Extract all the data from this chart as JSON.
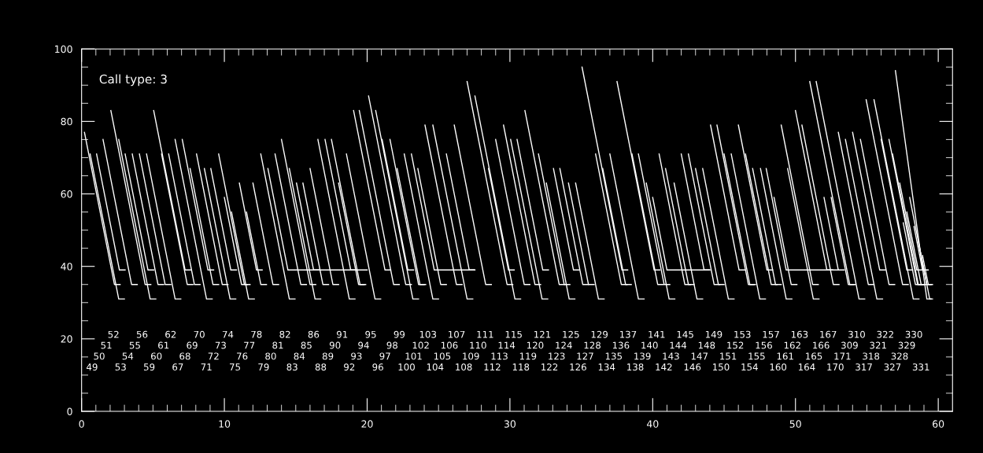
{
  "chart_data": {
    "type": "line",
    "xlim": [
      0,
      61
    ],
    "ylim": [
      0,
      100
    ],
    "xticks": [
      0,
      {
        "value": 1,
        "label": null
      },
      {
        "value": 2,
        "label": null
      },
      {
        "value": 3,
        "label": null
      },
      {
        "value": 4,
        "label": null
      },
      {
        "value": 5,
        "label": null
      },
      {
        "value": 6,
        "label": null
      },
      {
        "value": 7,
        "label": null
      },
      {
        "value": 8,
        "label": null
      },
      {
        "value": 9,
        "label": null
      },
      10,
      {
        "value": 11,
        "label": null
      },
      {
        "value": 12,
        "label": null
      },
      {
        "value": 13,
        "label": null
      },
      {
        "value": 14,
        "label": null
      },
      {
        "value": 15,
        "label": null
      },
      {
        "value": 16,
        "label": null
      },
      {
        "value": 17,
        "label": null
      },
      {
        "value": 18,
        "label": null
      },
      {
        "value": 19,
        "label": null
      },
      20,
      {
        "value": 21,
        "label": null
      },
      {
        "value": 22,
        "label": null
      },
      {
        "value": 23,
        "label": null
      },
      {
        "value": 24,
        "label": null
      },
      {
        "value": 25,
        "label": null
      },
      {
        "value": 26,
        "label": null
      },
      {
        "value": 27,
        "label": null
      },
      {
        "value": 28,
        "label": null
      },
      {
        "value": 29,
        "label": null
      },
      30,
      {
        "value": 31,
        "label": null
      },
      {
        "value": 32,
        "label": null
      },
      {
        "value": 33,
        "label": null
      },
      {
        "value": 34,
        "label": null
      },
      {
        "value": 35,
        "label": null
      },
      {
        "value": 36,
        "label": null
      },
      {
        "value": 37,
        "label": null
      },
      {
        "value": 38,
        "label": null
      },
      {
        "value": 39,
        "label": null
      },
      40,
      {
        "value": 41,
        "label": null
      },
      {
        "value": 42,
        "label": null
      },
      {
        "value": 43,
        "label": null
      },
      {
        "value": 44,
        "label": null
      },
      {
        "value": 45,
        "label": null
      },
      {
        "value": 46,
        "label": null
      },
      {
        "value": 47,
        "label": null
      },
      {
        "value": 48,
        "label": null
      },
      {
        "value": 49,
        "label": null
      },
      50,
      {
        "value": 51,
        "label": null
      },
      {
        "value": 52,
        "label": null
      },
      {
        "value": 53,
        "label": null
      },
      {
        "value": 54,
        "label": null
      },
      {
        "value": 55,
        "label": null
      },
      {
        "value": 56,
        "label": null
      },
      {
        "value": 57,
        "label": null
      },
      {
        "value": 58,
        "label": null
      },
      {
        "value": 59,
        "label": null
      },
      60
    ],
    "yticks": [
      0,
      {
        "value": 5,
        "label": null
      },
      {
        "value": 10,
        "label": null
      },
      {
        "value": 15,
        "label": null
      },
      20,
      {
        "value": 25,
        "label": null
      },
      {
        "value": 30,
        "label": null
      },
      {
        "value": 35,
        "label": null
      },
      40,
      {
        "value": 45,
        "label": null
      },
      {
        "value": 50,
        "label": null
      },
      {
        "value": 55,
        "label": null
      },
      60,
      {
        "value": 65,
        "label": null
      },
      {
        "value": 70,
        "label": null
      },
      {
        "value": 75,
        "label": null
      },
      80,
      {
        "value": 85,
        "label": null
      },
      {
        "value": 90,
        "label": null
      },
      {
        "value": 95,
        "label": null
      },
      100
    ],
    "annotations": [
      "Call type: 3",
      "49",
      "50",
      "51",
      "52",
      "53",
      "54",
      "55",
      "56",
      "59",
      "60",
      "61",
      "62",
      "67",
      "68",
      "69",
      "70",
      "71",
      "72",
      "73",
      "74",
      "75",
      "76",
      "77",
      "78",
      "79",
      "80",
      "81",
      "82",
      "83",
      "84",
      "85",
      "86",
      "88",
      "89",
      "90",
      "91",
      "92",
      "93",
      "94",
      "95",
      "96",
      "97",
      "98",
      "99",
      "100",
      "101",
      "102",
      "103",
      "104",
      "105",
      "106",
      "107",
      "108",
      "109",
      "110",
      "111",
      "112",
      "113",
      "114",
      "115",
      "118",
      "119",
      "120",
      "121",
      "122",
      "123",
      "124",
      "125",
      "126",
      "127",
      "128",
      "129",
      "134",
      "135",
      "136",
      "137",
      "138",
      "139",
      "140",
      "141",
      "142",
      "143",
      "144",
      "145",
      "146",
      "147",
      "148",
      "149",
      "150",
      "151",
      "152",
      "153",
      "154",
      "155",
      "156",
      "157",
      "160",
      "161",
      "162",
      "163",
      "164",
      "165",
      "166",
      "167",
      "170",
      "171",
      "309",
      "310",
      "317",
      "318",
      "321",
      "322",
      "327",
      "328",
      "329",
      "330",
      "331"
    ],
    "series": [
      {
        "color": "#ffffff",
        "x": [
          0.2,
          2.3,
          2.7
        ],
        "values": [
          77,
          35,
          35
        ]
      },
      {
        "color": "#ffffff",
        "x": [
          0.6,
          2.6,
          3.0
        ],
        "values": [
          71,
          31,
          31
        ]
      },
      {
        "color": "#ffffff",
        "x": [
          1.05,
          2.65,
          3.05
        ],
        "values": [
          71,
          39,
          39
        ]
      },
      {
        "color": "#ffffff",
        "x": [
          1.5,
          3.5,
          3.9
        ],
        "values": [
          75,
          35,
          35
        ]
      },
      {
        "color": "#ffffff",
        "x": [
          2.05,
          4.45,
          4.85
        ],
        "values": [
          83,
          35,
          35
        ]
      },
      {
        "color": "#ffffff",
        "x": [
          2.6,
          4.8,
          5.2
        ],
        "values": [
          75,
          31,
          31
        ]
      },
      {
        "color": "#ffffff",
        "x": [
          3.05,
          4.65,
          5.05
        ],
        "values": [
          71,
          39,
          39
        ]
      },
      {
        "color": "#ffffff",
        "x": [
          3.55,
          5.35,
          5.75
        ],
        "values": [
          71,
          35,
          35
        ]
      },
      {
        "color": "#ffffff",
        "x": [
          4.05,
          5.85,
          6.25
        ],
        "values": [
          71,
          35,
          35
        ]
      },
      {
        "color": "#ffffff",
        "x": [
          4.55,
          6.55,
          6.95
        ],
        "values": [
          71,
          31,
          31
        ]
      },
      {
        "color": "#ffffff",
        "x": [
          5.05,
          7.25,
          7.65
        ],
        "values": [
          83,
          39,
          39
        ]
      },
      {
        "color": "#ffffff",
        "x": [
          5.6,
          7.4,
          7.8
        ],
        "values": [
          71,
          35,
          35
        ]
      },
      {
        "color": "#ffffff",
        "x": [
          6.1,
          7.9,
          8.3
        ],
        "values": [
          71,
          35,
          35
        ]
      },
      {
        "color": "#ffffff",
        "x": [
          6.55,
          8.75,
          9.15
        ],
        "values": [
          75,
          31,
          31
        ]
      },
      {
        "color": "#ffffff",
        "x": [
          7.05,
          8.85,
          9.25
        ],
        "values": [
          75,
          39,
          39
        ]
      },
      {
        "color": "#ffffff",
        "x": [
          7.6,
          9.2,
          9.6
        ],
        "values": [
          67,
          35,
          35
        ]
      },
      {
        "color": "#ffffff",
        "x": [
          8.05,
          9.85,
          10.25
        ],
        "values": [
          71,
          35,
          35
        ]
      },
      {
        "color": "#ffffff",
        "x": [
          8.6,
          10.4,
          10.8
        ],
        "values": [
          67,
          31,
          31
        ]
      },
      {
        "color": "#ffffff",
        "x": [
          9.05,
          10.45,
          10.85
        ],
        "values": [
          67,
          39,
          39
        ]
      },
      {
        "color": "#ffffff",
        "x": [
          9.6,
          11.4,
          11.8
        ],
        "values": [
          71,
          35,
          35
        ]
      },
      {
        "color": "#ffffff",
        "x": [
          10.0,
          11.2,
          11.6
        ],
        "values": [
          59,
          35,
          35
        ]
      },
      {
        "color": "#ffffff",
        "x": [
          10.5,
          11.7,
          12.1
        ],
        "values": [
          55,
          31,
          31
        ]
      },
      {
        "color": "#ffffff",
        "x": [
          11.05,
          12.25,
          12.65
        ],
        "values": [
          63,
          39,
          39
        ]
      },
      {
        "color": "#ffffff",
        "x": [
          11.55,
          12.55,
          12.95
        ],
        "values": [
          55,
          35,
          35
        ]
      },
      {
        "color": "#ffffff",
        "x": [
          12.0,
          13.4,
          13.8
        ],
        "values": [
          63,
          35,
          35
        ]
      },
      {
        "color": "#ffffff",
        "x": [
          12.55,
          14.55,
          14.95
        ],
        "values": [
          71,
          31,
          31
        ]
      },
      {
        "color": "#ffffff",
        "x": [
          13.05,
          14.45,
          20.0
        ],
        "values": [
          67,
          39,
          39
        ]
      },
      {
        "color": "#ffffff",
        "x": [
          13.55,
          15.35,
          15.75
        ],
        "values": [
          71,
          35,
          35
        ]
      },
      {
        "color": "#ffffff",
        "x": [
          14.0,
          16.0,
          16.4
        ],
        "values": [
          75,
          35,
          35
        ]
      },
      {
        "color": "#ffffff",
        "x": [
          14.55,
          16.35,
          16.75
        ],
        "values": [
          67,
          31,
          31
        ]
      },
      {
        "color": "#ffffff",
        "x": [
          15.05,
          16.25,
          16.65
        ],
        "values": [
          63,
          39,
          39
        ]
      },
      {
        "color": "#ffffff",
        "x": [
          15.5,
          16.9,
          17.3
        ],
        "values": [
          63,
          35,
          35
        ]
      },
      {
        "color": "#ffffff",
        "x": [
          16.0,
          17.6,
          18.0
        ],
        "values": [
          67,
          35,
          35
        ]
      },
      {
        "color": "#ffffff",
        "x": [
          16.55,
          18.75,
          19.15
        ],
        "values": [
          75,
          31,
          31
        ]
      },
      {
        "color": "#ffffff",
        "x": [
          17.05,
          18.85,
          19.25
        ],
        "values": [
          75,
          39,
          39
        ]
      },
      {
        "color": "#ffffff",
        "x": [
          17.5,
          19.5,
          19.9
        ],
        "values": [
          75,
          35,
          35
        ]
      },
      {
        "color": "#ffffff",
        "x": [
          18.0,
          19.4,
          19.8
        ],
        "values": [
          63,
          35,
          35
        ]
      },
      {
        "color": "#ffffff",
        "x": [
          18.55,
          20.55,
          20.95
        ],
        "values": [
          71,
          31,
          31
        ]
      },
      {
        "color": "#ffffff",
        "x": [
          19.05,
          21.25,
          21.65
        ],
        "values": [
          83,
          39,
          39
        ]
      },
      {
        "color": "#ffffff",
        "x": [
          19.45,
          21.85,
          22.25
        ],
        "values": [
          83,
          35,
          35
        ]
      },
      {
        "color": "#ffffff",
        "x": [
          20.1,
          22.7,
          23.1
        ],
        "values": [
          87,
          35,
          35
        ]
      },
      {
        "color": "#ffffff",
        "x": [
          20.6,
          23.2,
          23.6
        ],
        "values": [
          83,
          31,
          31
        ]
      },
      {
        "color": "#ffffff",
        "x": [
          21.05,
          22.85,
          23.25
        ],
        "values": [
          75,
          39,
          39
        ]
      },
      {
        "color": "#ffffff",
        "x": [
          21.6,
          23.6,
          24.0
        ],
        "values": [
          75,
          35,
          35
        ]
      },
      {
        "color": "#ffffff",
        "x": [
          22.1,
          23.7,
          24.1
        ],
        "values": [
          67,
          35,
          35
        ]
      },
      {
        "color": "#ffffff",
        "x": [
          22.6,
          24.6,
          25.0
        ],
        "values": [
          71,
          31,
          31
        ]
      },
      {
        "color": "#ffffff",
        "x": [
          23.1,
          24.7,
          27.5
        ],
        "values": [
          71,
          39,
          39
        ]
      },
      {
        "color": "#ffffff",
        "x": [
          23.55,
          25.15,
          25.55
        ],
        "values": [
          67,
          35,
          35
        ]
      },
      {
        "color": "#ffffff",
        "x": [
          24.05,
          26.25,
          26.65
        ],
        "values": [
          79,
          35,
          35
        ]
      },
      {
        "color": "#ffffff",
        "x": [
          24.6,
          27.0,
          27.4
        ],
        "values": [
          79,
          31,
          31
        ]
      },
      {
        "color": "#ffffff",
        "x": [
          25.55,
          27.15,
          27.55
        ],
        "values": [
          71,
          39,
          39
        ]
      },
      {
        "color": "#ffffff",
        "x": [
          26.1,
          28.3,
          28.7
        ],
        "values": [
          79,
          35,
          35
        ]
      },
      {
        "color": "#ffffff",
        "x": [
          27.0,
          29.8,
          30.2
        ],
        "values": [
          91,
          35,
          35
        ]
      },
      {
        "color": "#ffffff",
        "x": [
          27.55,
          30.35,
          30.75
        ],
        "values": [
          87,
          31,
          31
        ]
      },
      {
        "color": "#ffffff",
        "x": [
          28.5,
          29.9,
          30.3
        ],
        "values": [
          67,
          39,
          39
        ]
      },
      {
        "color": "#ffffff",
        "x": [
          29.0,
          31.0,
          31.4
        ],
        "values": [
          75,
          35,
          35
        ]
      },
      {
        "color": "#ffffff",
        "x": [
          29.55,
          31.75,
          32.15
        ],
        "values": [
          79,
          35,
          35
        ]
      },
      {
        "color": "#ffffff",
        "x": [
          30.05,
          32.25,
          32.65
        ],
        "values": [
          75,
          31,
          31
        ]
      },
      {
        "color": "#ffffff",
        "x": [
          30.5,
          32.3,
          32.7
        ],
        "values": [
          75,
          39,
          39
        ]
      },
      {
        "color": "#ffffff",
        "x": [
          31.05,
          33.45,
          33.85
        ],
        "values": [
          83,
          35,
          35
        ]
      },
      {
        "color": "#ffffff",
        "x": [
          32.0,
          33.8,
          34.2
        ],
        "values": [
          71,
          35,
          35
        ]
      },
      {
        "color": "#ffffff",
        "x": [
          32.55,
          34.15,
          34.55
        ],
        "values": [
          63,
          31,
          31
        ]
      },
      {
        "color": "#ffffff",
        "x": [
          33.05,
          34.45,
          34.85
        ],
        "values": [
          67,
          39,
          39
        ]
      },
      {
        "color": "#ffffff",
        "x": [
          33.5,
          35.1,
          35.5
        ],
        "values": [
          67,
          35,
          35
        ]
      },
      {
        "color": "#ffffff",
        "x": [
          34.1,
          35.5,
          35.9
        ],
        "values": [
          63,
          35,
          35
        ]
      },
      {
        "color": "#ffffff",
        "x": [
          34.6,
          36.2,
          36.6
        ],
        "values": [
          63,
          31,
          31
        ]
      },
      {
        "color": "#ffffff",
        "x": [
          35.05,
          37.85,
          38.25
        ],
        "values": [
          95,
          39,
          39
        ]
      },
      {
        "color": "#ffffff",
        "x": [
          36.0,
          37.8,
          38.2
        ],
        "values": [
          71,
          35,
          35
        ]
      },
      {
        "color": "#ffffff",
        "x": [
          36.5,
          38.1,
          38.5
        ],
        "values": [
          67,
          35,
          35
        ]
      },
      {
        "color": "#ffffff",
        "x": [
          37.0,
          39.0,
          39.4
        ],
        "values": [
          71,
          31,
          31
        ]
      },
      {
        "color": "#ffffff",
        "x": [
          37.5,
          40.1,
          40.5
        ],
        "values": [
          91,
          39,
          39
        ]
      },
      {
        "color": "#ffffff",
        "x": [
          38.55,
          40.35,
          40.75
        ],
        "values": [
          71,
          35,
          35
        ]
      },
      {
        "color": "#ffffff",
        "x": [
          39.0,
          40.8,
          41.2
        ],
        "values": [
          71,
          35,
          35
        ]
      },
      {
        "color": "#ffffff",
        "x": [
          39.55,
          41.15,
          41.55
        ],
        "values": [
          63,
          31,
          31
        ]
      },
      {
        "color": "#ffffff",
        "x": [
          40.0,
          41.0,
          44.0
        ],
        "values": [
          59,
          39,
          39
        ]
      },
      {
        "color": "#ffffff",
        "x": [
          40.45,
          42.25,
          42.65
        ],
        "values": [
          71,
          35,
          35
        ]
      },
      {
        "color": "#ffffff",
        "x": [
          40.9,
          42.5,
          42.9
        ],
        "values": [
          67,
          35,
          35
        ]
      },
      {
        "color": "#ffffff",
        "x": [
          41.5,
          43.1,
          43.5
        ],
        "values": [
          63,
          31,
          31
        ]
      },
      {
        "color": "#ffffff",
        "x": [
          42.0,
          43.6,
          44.0
        ],
        "values": [
          71,
          39,
          39
        ]
      },
      {
        "color": "#ffffff",
        "x": [
          42.5,
          44.3,
          44.7
        ],
        "values": [
          71,
          35,
          35
        ]
      },
      {
        "color": "#ffffff",
        "x": [
          43.0,
          44.6,
          45.0
        ],
        "values": [
          67,
          35,
          35
        ]
      },
      {
        "color": "#ffffff",
        "x": [
          43.5,
          45.3,
          45.7
        ],
        "values": [
          67,
          31,
          31
        ]
      },
      {
        "color": "#ffffff",
        "x": [
          44.05,
          46.05,
          46.45
        ],
        "values": [
          79,
          39,
          39
        ]
      },
      {
        "color": "#ffffff",
        "x": [
          44.5,
          46.7,
          47.1
        ],
        "values": [
          79,
          35,
          35
        ]
      },
      {
        "color": "#ffffff",
        "x": [
          45.0,
          46.8,
          47.2
        ],
        "values": [
          71,
          35,
          35
        ]
      },
      {
        "color": "#ffffff",
        "x": [
          45.5,
          47.5,
          47.9
        ],
        "values": [
          71,
          31,
          31
        ]
      },
      {
        "color": "#ffffff",
        "x": [
          46.0,
          48.0,
          48.4
        ],
        "values": [
          79,
          39,
          39
        ]
      },
      {
        "color": "#ffffff",
        "x": [
          46.5,
          48.3,
          48.7
        ],
        "values": [
          71,
          35,
          35
        ]
      },
      {
        "color": "#ffffff",
        "x": [
          47.0,
          48.6,
          49.0
        ],
        "values": [
          67,
          35,
          35
        ]
      },
      {
        "color": "#ffffff",
        "x": [
          47.55,
          49.35,
          49.75
        ],
        "values": [
          67,
          31,
          31
        ]
      },
      {
        "color": "#ffffff",
        "x": [
          47.95,
          49.35,
          53.0
        ],
        "values": [
          67,
          39,
          39
        ]
      },
      {
        "color": "#ffffff",
        "x": [
          48.5,
          49.7,
          50.1
        ],
        "values": [
          59,
          35,
          35
        ]
      },
      {
        "color": "#ffffff",
        "x": [
          49.0,
          51.2,
          51.6
        ],
        "values": [
          79,
          35,
          35
        ]
      },
      {
        "color": "#ffffff",
        "x": [
          49.45,
          51.25,
          51.65
        ],
        "values": [
          67,
          31,
          31
        ]
      },
      {
        "color": "#ffffff",
        "x": [
          50.0,
          52.2,
          52.6
        ],
        "values": [
          83,
          39,
          39
        ]
      },
      {
        "color": "#ffffff",
        "x": [
          50.45,
          52.65,
          53.05
        ],
        "values": [
          79,
          35,
          35
        ]
      },
      {
        "color": "#ffffff",
        "x": [
          51.0,
          53.8,
          54.2
        ],
        "values": [
          91,
          35,
          35
        ]
      },
      {
        "color": "#ffffff",
        "x": [
          51.45,
          54.45,
          54.85
        ],
        "values": [
          91,
          31,
          31
        ]
      },
      {
        "color": "#ffffff",
        "x": [
          52.0,
          53.0,
          53.4
        ],
        "values": [
          59,
          39,
          39
        ]
      },
      {
        "color": "#ffffff",
        "x": [
          52.5,
          53.7,
          54.1
        ],
        "values": [
          59,
          35,
          35
        ]
      },
      {
        "color": "#ffffff",
        "x": [
          53.0,
          55.1,
          55.5
        ],
        "values": [
          77,
          35,
          35
        ]
      },
      {
        "color": "#ffffff",
        "x": [
          53.5,
          55.7,
          56.1
        ],
        "values": [
          75,
          31,
          31
        ]
      },
      {
        "color": "#ffffff",
        "x": [
          54.0,
          55.9,
          56.3
        ],
        "values": [
          77,
          39,
          39
        ]
      },
      {
        "color": "#ffffff",
        "x": [
          54.55,
          56.55,
          56.95
        ],
        "values": [
          75,
          35,
          35
        ]
      },
      {
        "color": "#ffffff",
        "x": [
          54.95,
          57.5,
          57.9
        ],
        "values": [
          86,
          35,
          35
        ]
      },
      {
        "color": "#ffffff",
        "x": [
          55.5,
          58.25,
          58.65
        ],
        "values": [
          86,
          31,
          31
        ]
      },
      {
        "color": "#ffffff",
        "x": [
          56.0,
          57.8,
          58.2
        ],
        "values": [
          75,
          39,
          39
        ]
      },
      {
        "color": "#ffffff",
        "x": [
          56.55,
          58.55,
          58.95
        ],
        "values": [
          75,
          35,
          35
        ]
      },
      {
        "color": "#ffffff",
        "x": [
          56.8,
          58.6,
          59.0
        ],
        "values": [
          71,
          35,
          35
        ]
      },
      {
        "color": "#ffffff",
        "x": [
          57.0,
          59.2,
          59.5
        ],
        "values": [
          94,
          31,
          31
        ]
      },
      {
        "color": "#ffffff",
        "x": [
          57.3,
          58.5,
          58.9
        ],
        "values": [
          63,
          39,
          39
        ]
      },
      {
        "color": "#ffffff",
        "x": [
          57.55,
          58.4,
          58.8
        ],
        "values": [
          52,
          35,
          35
        ]
      },
      {
        "color": "#ffffff",
        "x": [
          57.8,
          58.8,
          59.2
        ],
        "values": [
          55,
          35,
          35
        ]
      },
      {
        "color": "#ffffff",
        "x": [
          58.0,
          59.4,
          59.6
        ],
        "values": [
          59,
          31,
          31
        ]
      },
      {
        "color": "#ffffff",
        "x": [
          58.3,
          58.9,
          59.3
        ],
        "values": [
          51,
          39,
          39
        ]
      },
      {
        "color": "#ffffff",
        "x": [
          58.6,
          59.2,
          59.5
        ],
        "values": [
          47,
          35,
          35
        ]
      },
      {
        "color": "#ffffff",
        "x": [
          58.9,
          59.3,
          59.6
        ],
        "values": [
          43,
          35,
          35
        ]
      }
    ]
  }
}
